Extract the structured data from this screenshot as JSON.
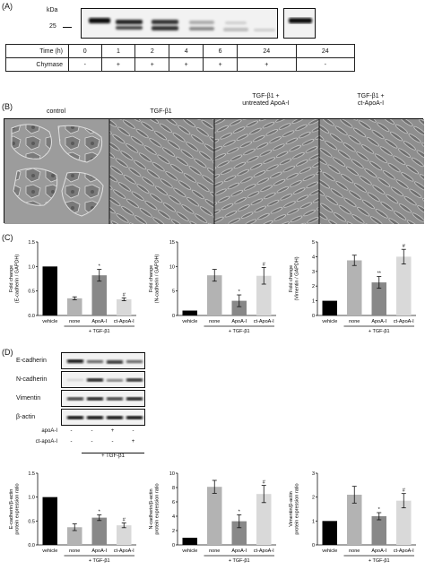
{
  "panelA": {
    "label": "(A)",
    "kda_label": "kDa",
    "marker": "25",
    "rows": [
      {
        "label": "Time (h)",
        "values": [
          "0",
          "1",
          "2",
          "4",
          "6",
          "24",
          "24"
        ]
      },
      {
        "label": "Chymase",
        "values": [
          "-",
          "+",
          "+",
          "+",
          "+",
          "+",
          "-"
        ]
      }
    ]
  },
  "panelB": {
    "label": "(B)",
    "images": [
      "control",
      "TGF-β1",
      "TGF-β1 +\nuntreated ApoA-I",
      "TGF-β1 +\nct-ApoA-I"
    ]
  },
  "panelC": {
    "label": "(C)",
    "group_label": "+ TGF-β1",
    "chart_data": [
      {
        "type": "bar",
        "categories": [
          "vehicle",
          "none",
          "ApoA-I",
          "ct-ApoA-I"
        ],
        "values": [
          1.0,
          0.35,
          0.82,
          0.33
        ],
        "errors": [
          0,
          0.03,
          0.12,
          0.03
        ],
        "sig": [
          "",
          "",
          "*",
          "#"
        ],
        "ylabel": "Fold change\n(E-cadherin / GAPDH)",
        "ylim": [
          0,
          1.5
        ],
        "yticks": [
          "0.0",
          "0.5",
          "1.0",
          "1.5"
        ],
        "colors": [
          "#000000",
          "#b3b3b3",
          "#888888",
          "#d9d9d9"
        ]
      },
      {
        "type": "bar",
        "categories": [
          "vehicle",
          "none",
          "ApoA-I",
          "ct-ApoA-I"
        ],
        "values": [
          1.0,
          8.2,
          3.0,
          8.1
        ],
        "errors": [
          0,
          1.2,
          1.2,
          1.7
        ],
        "sig": [
          "",
          "",
          "*",
          "#"
        ],
        "ylabel": "Fold change\n(N-cadherin / GAPDH)",
        "ylim": [
          0,
          15
        ],
        "yticks": [
          "0",
          "5",
          "10",
          "15"
        ],
        "colors": [
          "#000000",
          "#b3b3b3",
          "#888888",
          "#d9d9d9"
        ]
      },
      {
        "type": "bar",
        "categories": [
          "vehicle",
          "none",
          "ApoA-I",
          "ct-ApoA-I"
        ],
        "values": [
          1.0,
          3.75,
          2.25,
          4.0
        ],
        "errors": [
          0,
          0.35,
          0.4,
          0.5
        ],
        "sig": [
          "",
          "",
          "**",
          "#"
        ],
        "ylabel": "Fold change\n(Vimentin / GAPDH)",
        "ylim": [
          0,
          5
        ],
        "yticks": [
          "0",
          "1",
          "2",
          "3",
          "4",
          "5"
        ],
        "colors": [
          "#000000",
          "#b3b3b3",
          "#888888",
          "#d9d9d9"
        ]
      }
    ]
  },
  "panelD": {
    "label": "(D)",
    "blot_labels": [
      "E-cadherin",
      "N-cadherin",
      "Vimentin",
      "β-actin"
    ],
    "treatment_rows": [
      {
        "label": "apoA-I",
        "values": [
          "-",
          "-",
          "+",
          "-"
        ]
      },
      {
        "label": "ct-apoA-I",
        "values": [
          "-",
          "-",
          "-",
          "+"
        ]
      }
    ],
    "group_label": "+ TGF-β1",
    "chart_data": [
      {
        "type": "bar",
        "categories": [
          "vehicle",
          "none",
          "ApoA-I",
          "ct-ApoA-I"
        ],
        "values": [
          1.0,
          0.37,
          0.57,
          0.41
        ],
        "errors": [
          0,
          0.07,
          0.06,
          0.05
        ],
        "sig": [
          "",
          "",
          "*",
          "#"
        ],
        "ylabel": "E-cadherin/β-actin\nprotein expression ratio",
        "ylim": [
          0,
          1.5
        ],
        "yticks": [
          "0.0",
          "0.5",
          "1.0",
          "1.5"
        ],
        "colors": [
          "#000000",
          "#b3b3b3",
          "#888888",
          "#d9d9d9"
        ]
      },
      {
        "type": "bar",
        "categories": [
          "vehicle",
          "none",
          "ApoA-I",
          "ct-ApoA-I"
        ],
        "values": [
          1.0,
          8.1,
          3.3,
          7.1
        ],
        "errors": [
          0,
          0.9,
          0.9,
          1.2
        ],
        "sig": [
          "",
          "",
          "*",
          "#"
        ],
        "ylabel": "N-cadherin/β-actin\nprotein expression ratio",
        "ylim": [
          0,
          10
        ],
        "yticks": [
          "0",
          "2",
          "4",
          "6",
          "8",
          "10"
        ],
        "colors": [
          "#000000",
          "#b3b3b3",
          "#888888",
          "#d9d9d9"
        ]
      },
      {
        "type": "bar",
        "categories": [
          "vehicle",
          "none",
          "ApoA-I",
          "ct-ApoA-I"
        ],
        "values": [
          1.0,
          2.1,
          1.2,
          1.85
        ],
        "errors": [
          0,
          0.35,
          0.15,
          0.3
        ],
        "sig": [
          "",
          "",
          "*",
          "#"
        ],
        "ylabel": "Vimentin/β-actin\nprotein expression ratio",
        "ylim": [
          0,
          3
        ],
        "yticks": [
          "0",
          "1",
          "2",
          "3"
        ],
        "colors": [
          "#000000",
          "#b3b3b3",
          "#888888",
          "#d9d9d9"
        ]
      }
    ]
  }
}
